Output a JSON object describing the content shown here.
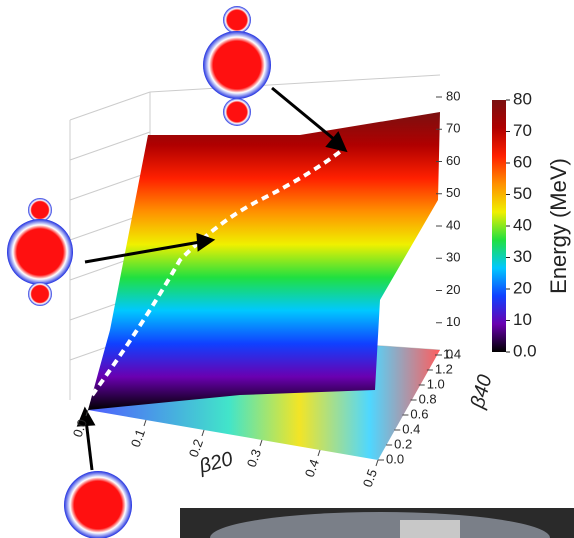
{
  "chart_data": {
    "type": "surface3d",
    "x_label": "β20",
    "y_label": "β40",
    "colorbar_label": "Energy (MeV)",
    "xlim": [
      0,
      0.5
    ],
    "xticks": [
      {
        "value": 0,
        "label": "0.0"
      },
      0.1,
      0.2,
      0.3,
      0.4,
      0.5
    ],
    "ylim": [
      0,
      1.4
    ],
    "yticks": [
      {
        "value": 0,
        "label": "0.0"
      },
      0.2,
      0.4,
      0.6,
      0.8,
      {
        "value": 1,
        "label": "1.0"
      },
      1.2,
      1.4
    ],
    "zlim": [
      0,
      80
    ],
    "zticks": [
      0,
      10,
      20,
      30,
      40,
      50,
      60,
      70,
      80
    ],
    "clim": [
      0,
      80
    ],
    "cticks": [
      {
        "value": 0,
        "label": "0.0"
      },
      10,
      20,
      30,
      40,
      50,
      60,
      70,
      80
    ],
    "colormap": [
      "#000000",
      "#6a00b0",
      "#1040ff",
      "#00c8ff",
      "#20e040",
      "#f0f000",
      "#ff9000",
      "#ff2000",
      "#b00000",
      "#7a1010"
    ]
  }
}
